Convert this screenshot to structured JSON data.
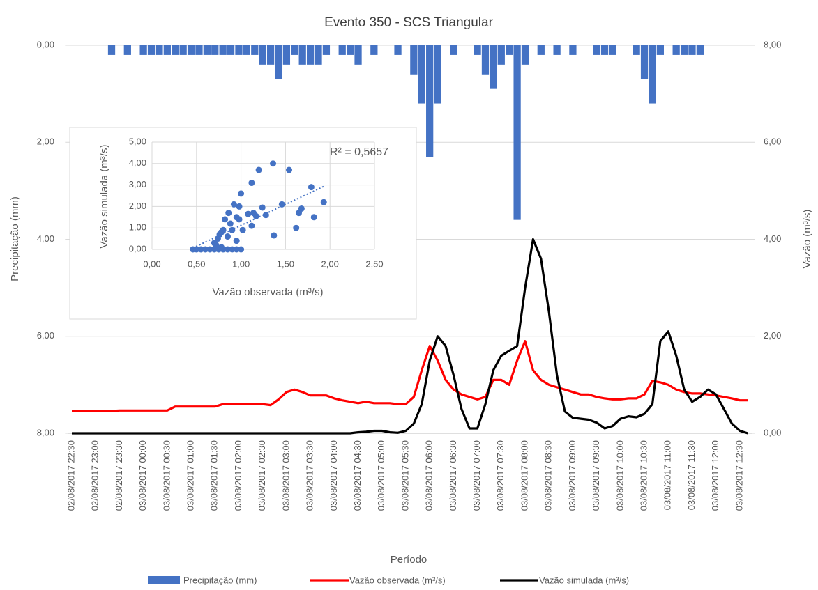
{
  "chart_data": [
    {
      "type": "combo",
      "title": "Evento 350 - SCS Triangular",
      "x_label": "Período",
      "y_label": "Precipitação (mm)",
      "y2_label": "Vazão (m³/s)",
      "categories": [
        "02/08/2017 22:30",
        null,
        null,
        "02/08/2017 23:00",
        null,
        null,
        "02/08/2017 23:30",
        null,
        null,
        "03/08/2017 00:00",
        null,
        null,
        "03/08/2017 00:30",
        null,
        null,
        "03/08/2017 01:00",
        null,
        null,
        "03/08/2017 01:30",
        null,
        null,
        "03/08/2017 02:00",
        null,
        null,
        "03/08/2017 02:30",
        null,
        null,
        "03/08/2017 03:00",
        null,
        null,
        "03/08/2017 03:30",
        null,
        null,
        "03/08/2017 04:00",
        null,
        null,
        "03/08/2017 04:30",
        null,
        null,
        "03/08/2017 05:00",
        null,
        null,
        "03/08/2017 05:30",
        null,
        null,
        "03/08/2017 06:00",
        null,
        null,
        "03/08/2017 06:30",
        null,
        null,
        "03/08/2017 07:00",
        null,
        null,
        "03/08/2017 07:30",
        null,
        null,
        "03/08/2017 08:00",
        null,
        null,
        "03/08/2017 08:30",
        null,
        null,
        "03/08/2017 09:00",
        null,
        null,
        "03/08/2017 09:30",
        null,
        null,
        "03/08/2017 10:00",
        null,
        null,
        "03/08/2017 10:30",
        null,
        null,
        "03/08/2017 11:00",
        null,
        null,
        "03/08/2017 11:30",
        null,
        null,
        "03/08/2017 12:00",
        null,
        null,
        "03/08/2017 12:30",
        null
      ],
      "series": [
        {
          "name": "Precipitação (mm)",
          "color": "#4472c4",
          "kind": "bar",
          "axis": "y",
          "values": [
            0,
            0,
            0,
            0,
            0,
            0.2,
            0,
            0.2,
            0,
            0.2,
            0.2,
            0.2,
            0.2,
            0.2,
            0.2,
            0.2,
            0.2,
            0.2,
            0.2,
            0.2,
            0.2,
            0.2,
            0.2,
            0.2,
            0.4,
            0.4,
            0.7,
            0.4,
            0.2,
            0.4,
            0.4,
            0.4,
            0.2,
            0,
            0.2,
            0.2,
            0.4,
            0,
            0.2,
            0,
            0,
            0.2,
            0,
            0.6,
            1.2,
            2.3,
            1.2,
            0,
            0.2,
            0,
            0,
            0.2,
            0.6,
            0.9,
            0.4,
            0.2,
            3.6,
            0.4,
            0,
            0.2,
            0,
            0.2,
            0,
            0.2,
            0,
            0,
            0.2,
            0.2,
            0.2,
            0,
            0,
            0.2,
            0.7,
            1.2,
            0.2,
            0,
            0.2,
            0.2,
            0.2,
            0.2,
            0,
            0,
            0,
            0,
            0,
            0
          ]
        },
        {
          "name": "Vazão observada (m³/s)",
          "color": "#ff0000",
          "kind": "line",
          "axis": "y2",
          "values": [
            0.46,
            0.46,
            0.46,
            0.46,
            0.46,
            0.46,
            0.47,
            0.47,
            0.47,
            0.47,
            0.47,
            0.47,
            0.47,
            0.55,
            0.55,
            0.55,
            0.55,
            0.55,
            0.55,
            0.6,
            0.6,
            0.6,
            0.6,
            0.6,
            0.6,
            0.58,
            0.7,
            0.85,
            0.9,
            0.85,
            0.78,
            0.78,
            0.78,
            0.72,
            0.68,
            0.65,
            0.62,
            0.65,
            0.62,
            0.62,
            0.62,
            0.6,
            0.6,
            0.75,
            1.3,
            1.8,
            1.5,
            1.1,
            0.9,
            0.8,
            0.75,
            0.7,
            0.75,
            1.1,
            1.1,
            1.0,
            1.5,
            1.9,
            1.3,
            1.1,
            1.0,
            0.95,
            0.9,
            0.85,
            0.8,
            0.8,
            0.75,
            0.72,
            0.7,
            0.7,
            0.72,
            0.72,
            0.8,
            1.08,
            1.05,
            1.0,
            0.9,
            0.85,
            0.82,
            0.82,
            0.8,
            0.78,
            0.75,
            0.72,
            0.68,
            0.68
          ]
        },
        {
          "name": "Vazão simulada (m³/s)",
          "color": "#000000",
          "kind": "line",
          "axis": "y2",
          "values": [
            0,
            0,
            0,
            0,
            0,
            0,
            0,
            0,
            0,
            0,
            0,
            0,
            0,
            0,
            0,
            0,
            0,
            0,
            0,
            0,
            0,
            0,
            0,
            0,
            0,
            0,
            0,
            0,
            0,
            0,
            0,
            0,
            0,
            0,
            0,
            0,
            0.02,
            0.03,
            0.05,
            0.05,
            0.02,
            0.01,
            0.05,
            0.2,
            0.6,
            1.5,
            2.0,
            1.8,
            1.2,
            0.5,
            0.1,
            0.1,
            0.6,
            1.3,
            1.6,
            1.7,
            1.8,
            3.0,
            4.0,
            3.6,
            2.5,
            1.2,
            0.45,
            0.32,
            0.3,
            0.28,
            0.22,
            0.1,
            0.15,
            0.3,
            0.35,
            0.33,
            0.4,
            0.6,
            1.9,
            2.1,
            1.6,
            0.9,
            0.65,
            0.75,
            0.9,
            0.8,
            0.5,
            0.2,
            0.05,
            0
          ]
        }
      ],
      "ylim": [
        0,
        8
      ],
      "y_reversed": true,
      "yticks": [
        {
          "value": 0,
          "label": "0,00"
        },
        {
          "value": 2,
          "label": "2,00"
        },
        {
          "value": 4,
          "label": "4,00"
        },
        {
          "value": 6,
          "label": "6,00"
        },
        {
          "value": 8,
          "label": "8,00"
        }
      ],
      "y2lim": [
        0,
        8
      ],
      "y2ticks": [
        {
          "value": 0,
          "label": "0,00"
        },
        {
          "value": 2,
          "label": "2,00"
        },
        {
          "value": 4,
          "label": "4,00"
        },
        {
          "value": 6,
          "label": "6,00"
        },
        {
          "value": 8,
          "label": "8,00"
        }
      ],
      "grid": true,
      "legend": "bottom"
    },
    {
      "type": "scatter",
      "x_label": "Vazão observada (m³/s)",
      "y_label": "Vazão simulada (m³/s)",
      "annotation": "R² = 0,5657",
      "color": "#4472c4",
      "trendline": "linear",
      "grid": true,
      "x": [
        1.36,
        1.54,
        1.2,
        1.12,
        1.79,
        1.0,
        1.93,
        1.46,
        0.92,
        0.98,
        1.24,
        1.14,
        1.08,
        1.17,
        1.28,
        1.68,
        1.65,
        1.82,
        1.62,
        1.37,
        1.12,
        0.98,
        0.95,
        0.86,
        0.82,
        0.88,
        0.8,
        0.78,
        0.76,
        0.74,
        0.7,
        0.85,
        0.9,
        0.95,
        1.02,
        0.72,
        0.78,
        0.46,
        0.5,
        0.55,
        0.6,
        0.65,
        0.7,
        0.75,
        0.8,
        0.85,
        0.9,
        0.95,
        1.0
      ],
      "y": [
        4.0,
        3.7,
        3.7,
        3.1,
        2.9,
        2.6,
        2.2,
        2.1,
        2.1,
        2.0,
        1.95,
        1.7,
        1.65,
        1.55,
        1.6,
        1.9,
        1.7,
        1.5,
        1.0,
        0.65,
        1.1,
        1.4,
        1.5,
        1.7,
        1.4,
        1.2,
        0.9,
        0.8,
        0.7,
        0.5,
        0.3,
        0.6,
        0.9,
        0.4,
        0.9,
        0.2,
        0.1,
        0,
        0,
        0,
        0,
        0,
        0,
        0,
        0,
        0,
        0,
        0,
        0
      ],
      "xlim": [
        0,
        2.5
      ],
      "xticks": [
        {
          "value": 0,
          "label": "0,00"
        },
        {
          "value": 0.5,
          "label": "0,50"
        },
        {
          "value": 1,
          "label": "1,00"
        },
        {
          "value": 1.5,
          "label": "1,50"
        },
        {
          "value": 2,
          "label": "2,00"
        },
        {
          "value": 2.5,
          "label": "2,50"
        }
      ],
      "ylim": [
        0,
        5
      ],
      "yticks": [
        {
          "value": 0,
          "label": "0,00"
        },
        {
          "value": 1,
          "label": "1,00"
        },
        {
          "value": 2,
          "label": "2,00"
        },
        {
          "value": 3,
          "label": "3,00"
        },
        {
          "value": 4,
          "label": "4,00"
        },
        {
          "value": 5,
          "label": "5,00"
        }
      ]
    }
  ]
}
